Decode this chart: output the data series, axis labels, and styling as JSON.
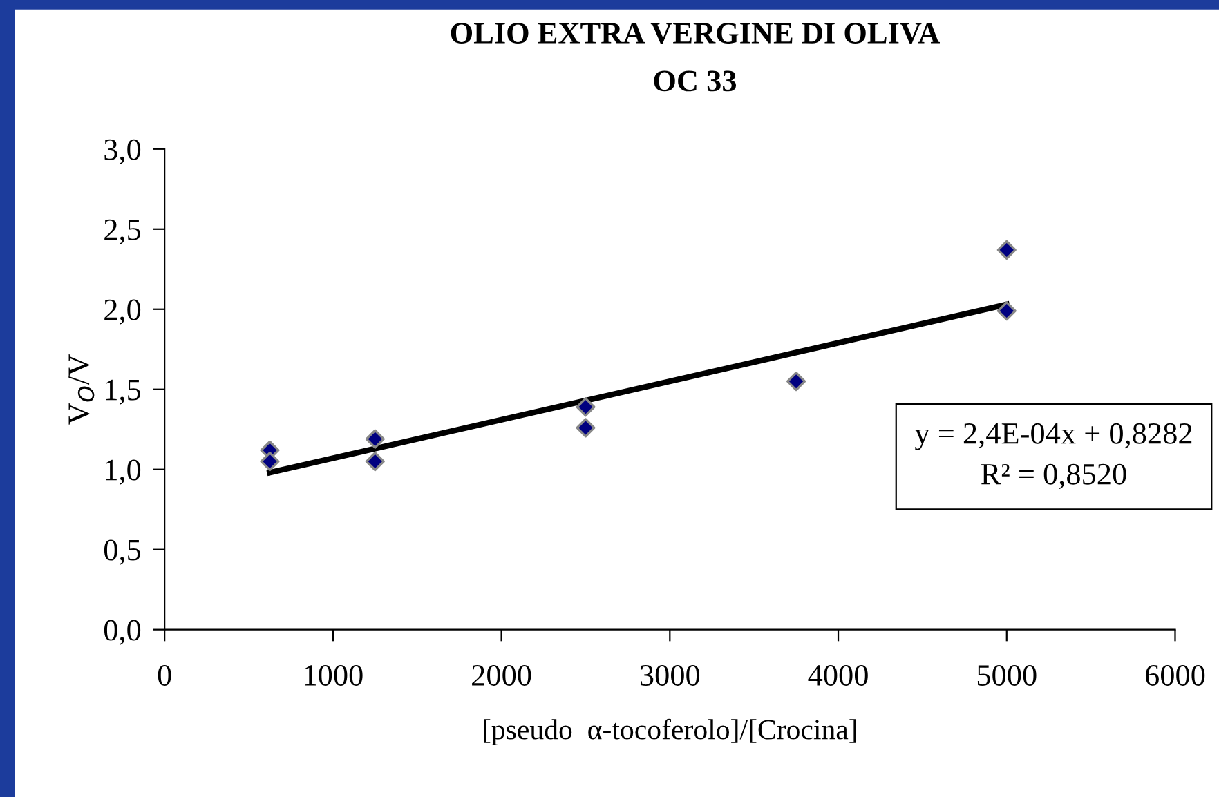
{
  "chart_data": {
    "type": "scatter",
    "title": "OLIO EXTRA VERGINE DI OLIVA",
    "subtitle": "OC 33",
    "xlabel": "[pseudo  α-tocoferolo]/[Crocina]",
    "ylabel": "V$_{O}$/V",
    "annotations": [
      "y = 2,4E-04x + 0,8282\nR² = 0,8520"
    ],
    "series": [
      {
        "marker": "diamond",
        "color": "#000080",
        "x": [
          625,
          625,
          1250,
          1250,
          2500,
          2500,
          3750,
          5000,
          5000
        ],
        "values": [
          1.12,
          1.05,
          1.19,
          1.05,
          1.39,
          1.26,
          1.55,
          2.37,
          1.99
        ]
      },
      {
        "type": "line",
        "color": "#000000",
        "x": [
          625,
          5000
        ],
        "values": [
          0.98,
          2.03
        ]
      }
    ],
    "xlim": [
      0,
      6000
    ],
    "xticks": [
      0,
      1000,
      2000,
      3000,
      4000,
      5000,
      6000
    ],
    "ylim": [
      0,
      3
    ],
    "yticks": [
      {
        "value": 0,
        "label": "0,0"
      },
      {
        "value": 0.5,
        "label": "0,5"
      },
      {
        "value": 1,
        "label": "1,0"
      },
      {
        "value": 1.5,
        "label": "1,5"
      },
      {
        "value": 2,
        "label": "2,0"
      },
      {
        "value": 2.5,
        "label": "2,5"
      },
      {
        "value": 3,
        "label": "3,0"
      }
    ],
    "grid": false,
    "legend": false
  }
}
